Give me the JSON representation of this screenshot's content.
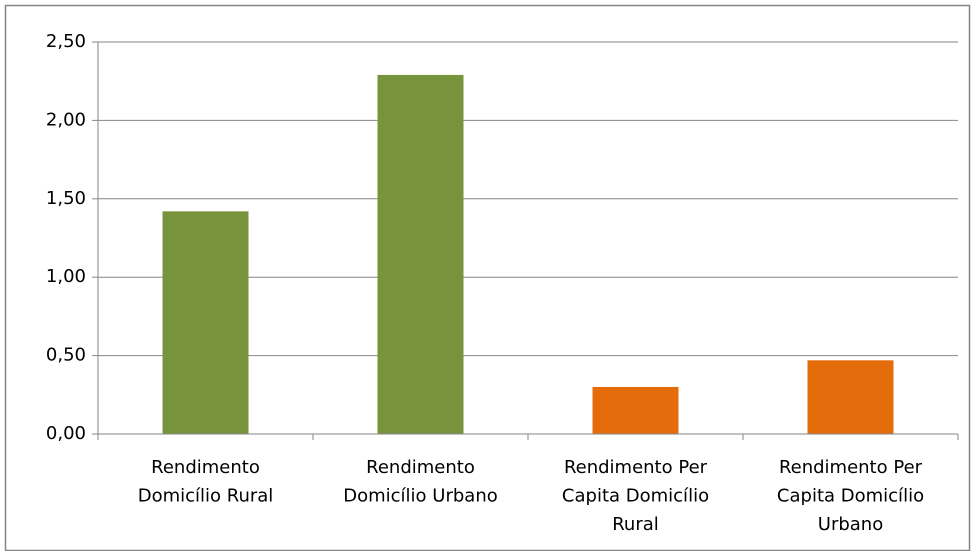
{
  "chart_data": {
    "type": "bar",
    "categories": [
      [
        "Rendimento",
        "Domicílio Rural"
      ],
      [
        "Rendimento",
        "Domicílio Urbano"
      ],
      [
        "Rendimento Per",
        "Capita Domicílio",
        "Rural"
      ],
      [
        "Rendimento Per",
        "Capita Domicílio",
        "Urbano"
      ]
    ],
    "values": [
      1.42,
      2.29,
      0.3,
      0.47
    ],
    "colors": [
      "#77933c",
      "#77933c",
      "#e46c0a",
      "#e46c0a"
    ],
    "ylim": [
      0,
      2.5
    ],
    "yticks": [
      {
        "value": 0,
        "label": "0,00"
      },
      {
        "value": 0.5,
        "label": "0,50"
      },
      {
        "value": 1,
        "label": "1,00"
      },
      {
        "value": 1.5,
        "label": "1,50"
      },
      {
        "value": 2,
        "label": "2,00"
      },
      {
        "value": 2.5,
        "label": "2,50"
      }
    ],
    "grid": true
  }
}
